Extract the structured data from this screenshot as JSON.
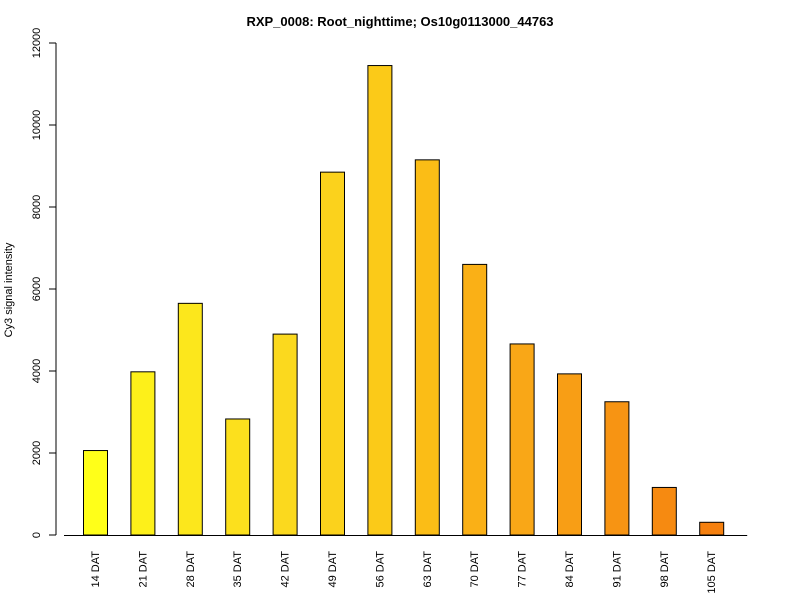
{
  "chart_data": {
    "type": "bar",
    "title": "RXP_0008: Root_nighttime; Os10g0113000_44763",
    "xlabel": "",
    "ylabel": "Cy3 signal intensity",
    "ylim": [
      0,
      12000
    ],
    "yticks": [
      0,
      2000,
      4000,
      6000,
      8000,
      10000,
      12000
    ],
    "grid": false,
    "legend": "none",
    "categories": [
      "14 DAT",
      "21 DAT",
      "28 DAT",
      "35 DAT",
      "42 DAT",
      "49 DAT",
      "56 DAT",
      "63 DAT",
      "70 DAT",
      "77 DAT",
      "84 DAT",
      "91 DAT",
      "98 DAT",
      "105 DAT"
    ],
    "values": [
      2060,
      3980,
      5650,
      2830,
      4900,
      8850,
      11450,
      9150,
      6600,
      4660,
      3930,
      3250,
      1160,
      310
    ],
    "colors": [
      "#ffff19",
      "#fdf01a",
      "#fce71c",
      "#fce01d",
      "#fbd91e",
      "#fbd21c",
      "#fbca18",
      "#fbbd16",
      "#fab016",
      "#f9a717",
      "#f89e15",
      "#f79413",
      "#f68a11",
      "#f5800f"
    ]
  }
}
